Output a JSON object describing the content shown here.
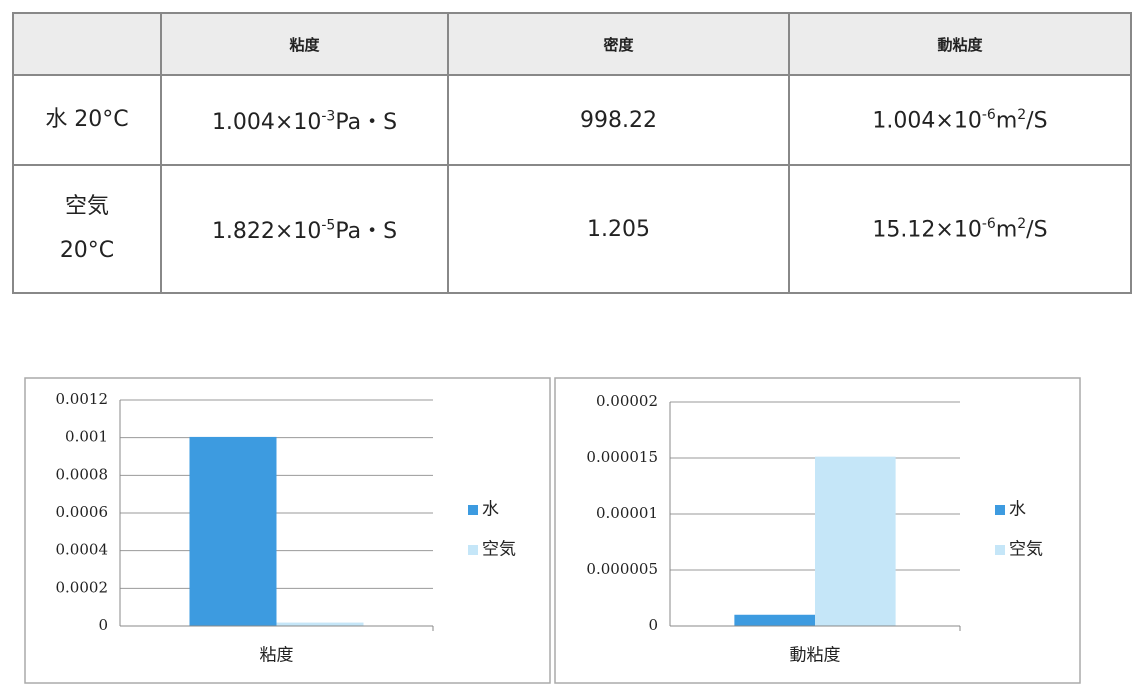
{
  "table": {
    "header": [
      "粘度",
      "密度",
      "動粘度"
    ],
    "rows": [
      {
        "label": [
          "水 20°C"
        ],
        "cells": [
          [
            "1.004×10",
            {
              "sup": "-3"
            },
            "Pa・S"
          ],
          [
            "998.22"
          ],
          [
            "1.004×10",
            {
              "sup": "-6"
            },
            "m",
            {
              "sup": "2"
            },
            "/S"
          ]
        ]
      },
      {
        "label": [
          "空気",
          "20°C"
        ],
        "cells": [
          [
            "1.822×10",
            {
              "sup": "-5"
            },
            "Pa・S"
          ],
          [
            "1.205"
          ],
          [
            "15.12×10",
            {
              "sup": "-6"
            },
            "m",
            {
              "sup": "2"
            },
            "/S"
          ]
        ]
      }
    ]
  },
  "chart_data": [
    {
      "type": "bar",
      "categories": [
        "粘度"
      ],
      "series": [
        {
          "name": "水",
          "color": "#3d9be0",
          "values": [
            0.001004
          ]
        },
        {
          "name": "空気",
          "color": "#c5e6f8",
          "values": [
            1.822e-05
          ]
        }
      ],
      "ylim": [
        0,
        0.0012
      ],
      "yticks": [
        0,
        0.0002,
        0.0004,
        0.0006,
        0.0008,
        0.001,
        0.0012
      ],
      "grid": true,
      "legend": "right"
    },
    {
      "type": "bar",
      "categories": [
        "動粘度"
      ],
      "series": [
        {
          "name": "水",
          "color": "#3d9be0",
          "values": [
            1.004e-06
          ]
        },
        {
          "name": "空気",
          "color": "#c5e6f8",
          "values": [
            1.512e-05
          ]
        }
      ],
      "ylim": [
        0,
        2e-05
      ],
      "yticks": [
        0,
        5e-06,
        1e-05,
        1.5e-05,
        2e-05
      ],
      "grid": true,
      "legend": "right"
    }
  ]
}
